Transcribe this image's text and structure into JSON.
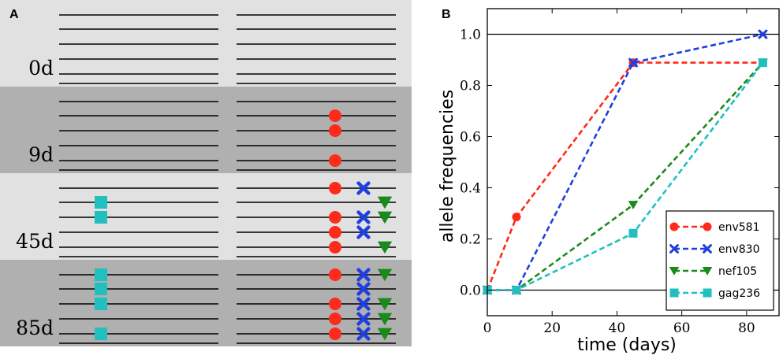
{
  "panel_a": {
    "letter": "A",
    "bands": [
      {
        "label": "0d",
        "shade": "#e1e1e1",
        "rows": [],
        "mutations": []
      },
      {
        "label": "9d",
        "shade": "#b0b0b0",
        "rows": [
          1,
          2,
          4
        ],
        "mutations": [
          [
            "env581"
          ],
          [
            "env581"
          ],
          [
            "env581"
          ]
        ]
      },
      {
        "label": "45d",
        "shade": "#e1e1e1",
        "rows": [
          0,
          1,
          2,
          3,
          4,
          5
        ],
        "mutations": [
          [
            "env581",
            "env830"
          ],
          [
            "gag236",
            "nef105"
          ],
          [
            "gag236",
            "env581",
            "env830",
            "nef105"
          ],
          [
            "env581",
            "env830"
          ],
          [
            "env581",
            "nef105"
          ],
          []
        ]
      },
      {
        "label": "85d",
        "shade": "#b0b0b0",
        "rows": [
          0,
          1,
          2,
          3,
          4,
          5
        ],
        "mutations": [
          [
            "gag236",
            "env581",
            "env830",
            "nef105"
          ],
          [
            "gag236",
            "env830"
          ],
          [
            "gag236",
            "env581",
            "env830",
            "nef105"
          ],
          [
            "env581",
            "env830",
            "nef105"
          ],
          [
            "gag236",
            "env581",
            "env830",
            "nef105"
          ],
          []
        ]
      }
    ]
  },
  "panel_b": {
    "letter": "B"
  },
  "chart_data": {
    "type": "line",
    "x": [
      0,
      9,
      45,
      85
    ],
    "series": [
      {
        "name": "env581",
        "color": "#ff2a1a",
        "marker": "circle",
        "values": [
          0.0,
          0.2857,
          0.8889,
          0.8889
        ]
      },
      {
        "name": "env830",
        "color": "#1f3fe0",
        "marker": "x",
        "values": [
          0.0,
          0.0,
          0.8889,
          1.0
        ]
      },
      {
        "name": "nef105",
        "color": "#1a8a1a",
        "marker": "triangle-down",
        "values": [
          0.0,
          0.0,
          0.3333,
          0.8889
        ]
      },
      {
        "name": "gag236",
        "color": "#22bfbf",
        "marker": "square",
        "values": [
          0.0,
          0.0,
          0.2222,
          0.8889
        ]
      }
    ],
    "xlabel": "time (days)",
    "ylabel": "allele frequencies",
    "xlim": [
      0,
      90
    ],
    "ylim": [
      -0.1,
      1.1
    ],
    "xticks": [
      0,
      20,
      40,
      60,
      80
    ],
    "yticks": [
      0.0,
      0.2,
      0.4,
      0.6,
      0.8,
      1.0
    ],
    "yticklabels": [
      "0.0",
      "0.2",
      "0.4",
      "0.6",
      "0.8",
      "1.0"
    ],
    "hlines": [
      0.0,
      1.0
    ],
    "legend": "bottom-right"
  }
}
